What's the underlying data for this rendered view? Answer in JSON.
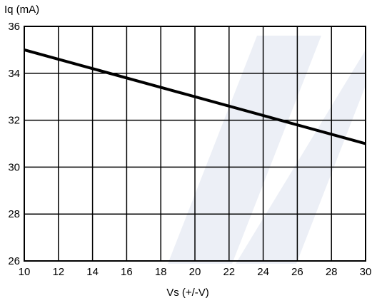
{
  "chart_data": {
    "type": "line",
    "ylabel": "Iq (mA)",
    "xlabel": "Vs (+/-V)",
    "xlim": [
      10,
      30
    ],
    "ylim": [
      26,
      36
    ],
    "xticks": [
      10,
      12,
      14,
      16,
      18,
      20,
      22,
      24,
      26,
      28,
      30
    ],
    "yticks": [
      26,
      28,
      30,
      32,
      34,
      36
    ],
    "grid": true,
    "series": [
      {
        "x": [
          10,
          30
        ],
        "y": [
          35,
          31
        ]
      }
    ],
    "colors": {
      "line": "#000000",
      "grid": "#000000",
      "watermark": "#c9d2e4"
    }
  }
}
